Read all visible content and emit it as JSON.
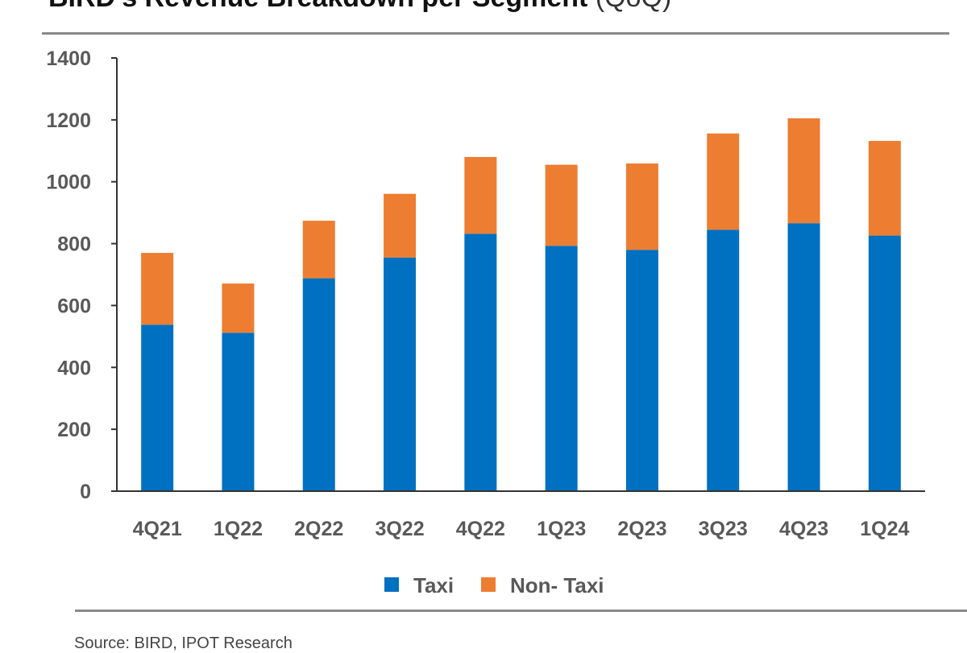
{
  "page": {
    "title_main": "BIRD's Revenue Breakdown per Segment",
    "title_suffix": "(QoQ)",
    "footer_note": "Source: BIRD, IPOT Research"
  },
  "chart_data": {
    "type": "bar",
    "stacked": true,
    "title": "BIRD's Revenue Breakdown per Segment (QoQ)",
    "xlabel": "",
    "ylabel": "",
    "ylim": [
      0,
      1400
    ],
    "yticks": [
      0,
      200,
      400,
      600,
      800,
      1000,
      1200,
      1400
    ],
    "grid": false,
    "legend_position": "bottom",
    "categories": [
      "4Q21",
      "1Q22",
      "2Q22",
      "3Q22",
      "4Q22",
      "1Q23",
      "2Q23",
      "3Q23",
      "4Q23",
      "1Q24"
    ],
    "series": [
      {
        "name": "Taxi",
        "color": "#0070C0",
        "values": [
          538,
          512,
          688,
          755,
          832,
          793,
          780,
          845,
          866,
          826
        ]
      },
      {
        "name": "Non- Taxi",
        "color": "#ED7D31",
        "values": [
          232,
          159,
          186,
          206,
          248,
          262,
          279,
          311,
          339,
          306
        ]
      }
    ]
  }
}
